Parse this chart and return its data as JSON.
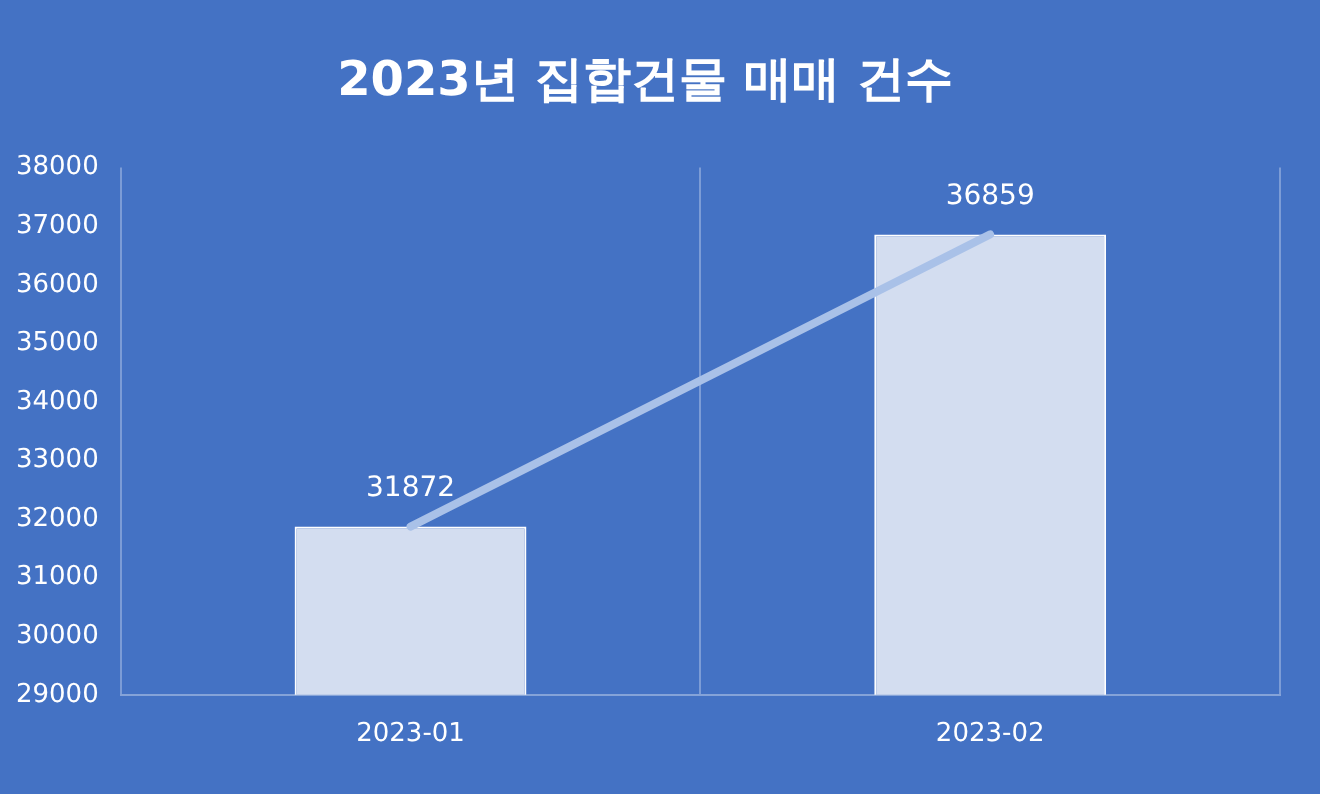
{
  "chart_data": {
    "type": "bar",
    "title": "2023년 집합건물 매매 건수",
    "categories": [
      "2023-01",
      "2023-02"
    ],
    "series": [
      {
        "color": "#d3ddf0",
        "values": [
          31872,
          36859
        ],
        "value_labels": [
          "31872",
          "36859"
        ]
      },
      {
        "type": "line",
        "color": "#a9c1e8",
        "values": [
          31872,
          36859
        ]
      }
    ],
    "ylim": [
      29000,
      38000
    ],
    "yticks": [
      29000,
      30000,
      31000,
      32000,
      33000,
      34000,
      35000,
      36000,
      37000,
      38000
    ],
    "grid": "x",
    "legend": false,
    "marker": "none"
  }
}
